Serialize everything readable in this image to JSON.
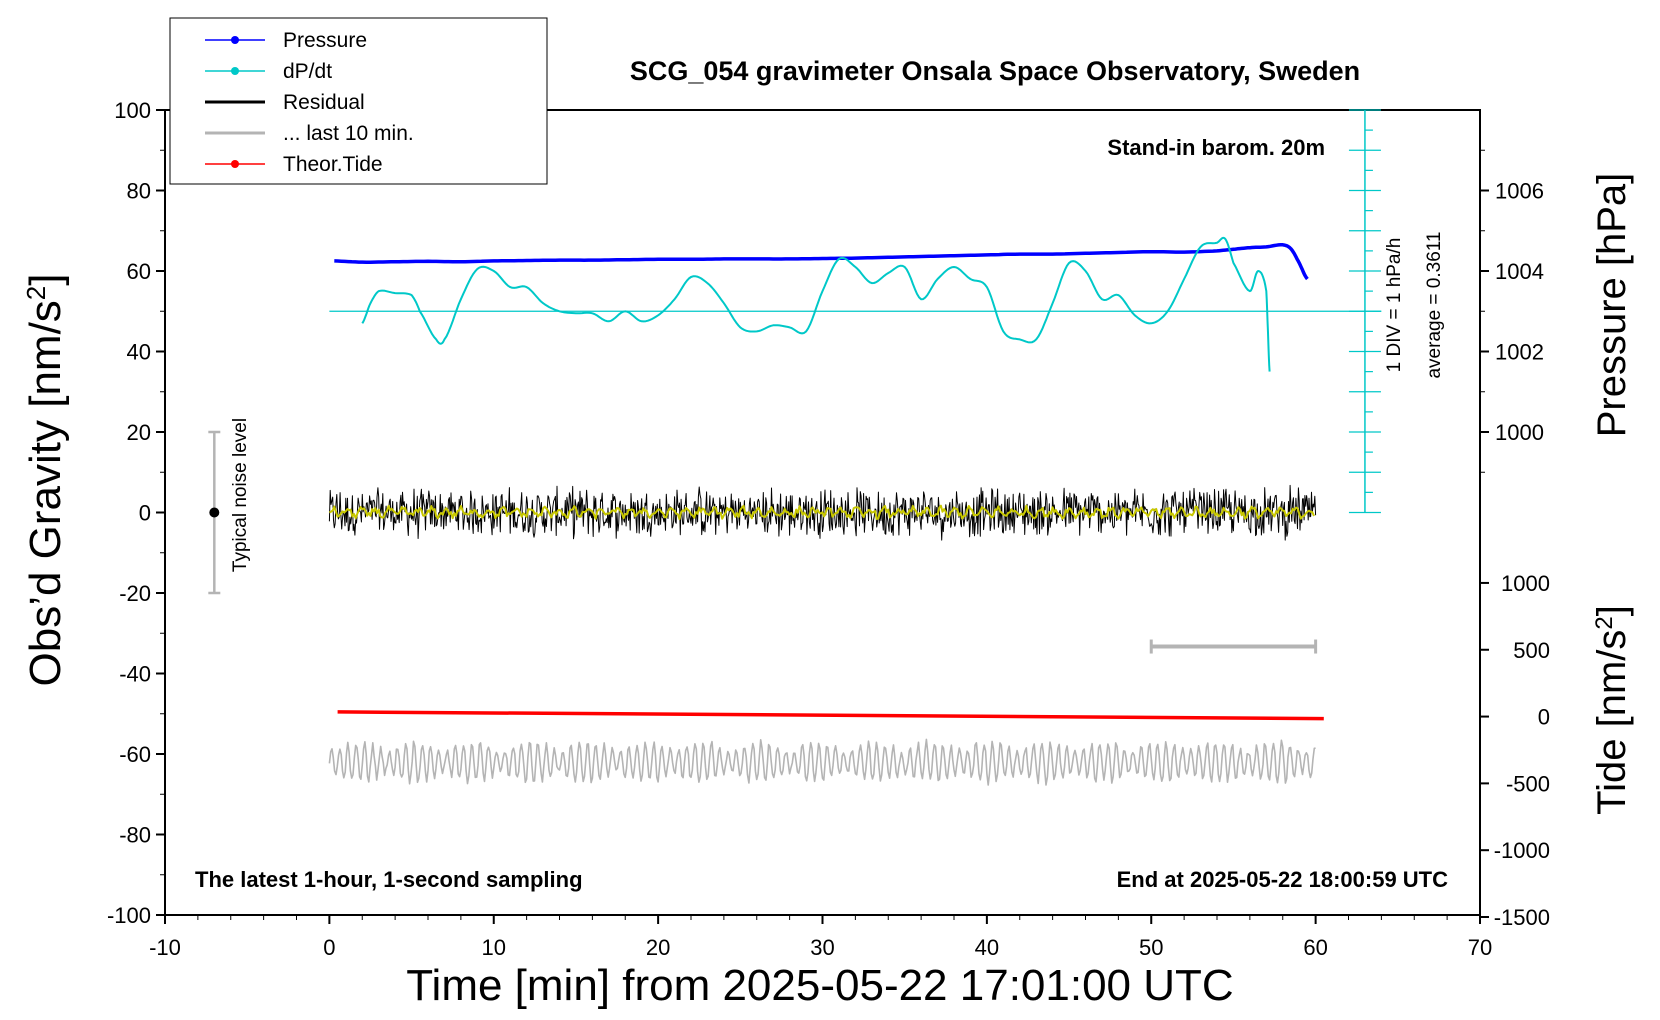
{
  "chart_data": {
    "type": "line",
    "title": "SCG_054 gravimeter Onsala Space Observatory, Sweden",
    "xlabel": "Time [min] from 2025-05-22 17:01:00 UTC",
    "ylabel_base": "Obs’d Gravity [nm/s",
    "ylabel_sup": "2",
    "ylabel_end": "]",
    "y2label": "Pressure [hPa]",
    "y3label_base": "Tide [nm/s",
    "y3label_sup": "2",
    "y3label_end": "]",
    "xlim": [
      -10,
      70
    ],
    "ylim": [
      -100,
      100
    ],
    "x_ticks": [
      "-10",
      "0",
      "10",
      "20",
      "30",
      "40",
      "50",
      "60",
      "70"
    ],
    "y_ticks": [
      "100",
      "80",
      "60",
      "40",
      "20",
      "0",
      "-20",
      "-40",
      "-60",
      "-80",
      "-100"
    ],
    "pressure_ticks": [
      "1006",
      "1004",
      "1002",
      "1000"
    ],
    "tide_ticks": [
      "1000",
      "500",
      "0",
      "-500",
      "-1000",
      "-1500"
    ],
    "legend_position": "top-left",
    "legend": [
      {
        "label": "Pressure",
        "color": "#0000ff",
        "marker": true
      },
      {
        "label": "dP/dt",
        "color": "#00c8c8",
        "marker": true
      },
      {
        "label": "Residual",
        "color": "#000000",
        "marker": false
      },
      {
        "label": "... last 10 min.",
        "color": "#b4b4b4",
        "marker": false
      },
      {
        "label": "Theor.Tide",
        "color": "#ff0000",
        "marker": true
      }
    ],
    "annotations": {
      "barometer": "Stand-in barom. 20m",
      "scale_div": "1 DIV = 1 hPa/h",
      "average": "average = 0.3611",
      "noise": "Typical noise level",
      "latest": "The latest 1-hour, 1-second sampling",
      "end_at": "End at 2025-05-22 18:00:59 UTC"
    },
    "noise_bar": {
      "x": -7,
      "center": 0,
      "half_range": 20
    },
    "last10_bar_x": [
      50,
      60
    ],
    "dpdt_average_line_y": 50,
    "series": [
      {
        "name": "Pressure",
        "color": "#0000ff",
        "axis": "left-equivalent",
        "x": [
          0.3,
          2,
          4,
          6,
          8,
          10,
          12,
          14,
          16,
          18,
          20,
          22,
          24,
          26,
          28,
          30,
          32,
          34,
          36,
          38,
          40,
          42,
          44,
          46,
          48,
          50,
          52,
          54,
          55,
          56,
          57,
          58,
          58.5,
          59,
          59.5
        ],
        "y": [
          62.5,
          62.2,
          62.3,
          62.4,
          62.3,
          62.5,
          62.6,
          62.7,
          62.7,
          62.8,
          62.9,
          62.9,
          63.0,
          63.0,
          63.0,
          63.1,
          63.2,
          63.4,
          63.6,
          63.8,
          64.0,
          64.2,
          64.2,
          64.4,
          64.6,
          64.8,
          64.7,
          65.0,
          65.4,
          65.8,
          66.0,
          66.5,
          65.5,
          62,
          58
        ]
      },
      {
        "name": "dP/dt",
        "color": "#00c8c8",
        "x": [
          2,
          2.5,
          3,
          4,
          5,
          5.5,
          6.5,
          7,
          8,
          9,
          10,
          11,
          12,
          13,
          14,
          15,
          16,
          17,
          18,
          19,
          20,
          21,
          22,
          23,
          24,
          25,
          26,
          27,
          28,
          29,
          30,
          31,
          32,
          33,
          34,
          35,
          36,
          37,
          38,
          39,
          40,
          41,
          42,
          43,
          44,
          45,
          46,
          47,
          48,
          49,
          50,
          51,
          52,
          53,
          54,
          54.5,
          55,
          56,
          56.5,
          57,
          57.2
        ],
        "y": [
          47,
          52,
          55,
          54.5,
          54,
          50,
          43,
          43,
          53,
          60.5,
          60,
          56,
          56,
          52,
          50,
          49.5,
          49.5,
          47.5,
          50,
          47.5,
          49,
          53,
          58.5,
          57,
          52,
          46,
          45,
          46.5,
          46,
          45,
          55,
          63,
          61,
          57,
          59.5,
          61,
          53,
          58,
          61,
          58,
          56,
          45,
          43,
          43,
          52,
          62,
          60,
          53,
          54,
          49,
          47,
          50,
          58,
          66,
          67,
          68,
          62,
          55,
          60,
          55,
          35
        ]
      },
      {
        "name": "Residual",
        "color": "#000000",
        "x_range": [
          0,
          60
        ],
        "amplitude": 5,
        "mean": 0
      },
      {
        "name": "Smoothed residual",
        "color": "#c8c800",
        "x_range": [
          0,
          60
        ],
        "amplitude": 1.5,
        "mean": 0
      },
      {
        "name": "Theor.Tide",
        "color": "#ff0000",
        "axis": "tide",
        "x": [
          0.5,
          60.5
        ],
        "y": [
          35,
          -15
        ]
      },
      {
        "name": "... last 10 min.",
        "color": "#b4b4b4",
        "x_range": [
          0,
          60
        ],
        "mean": -62,
        "amplitude": 5
      }
    ]
  }
}
